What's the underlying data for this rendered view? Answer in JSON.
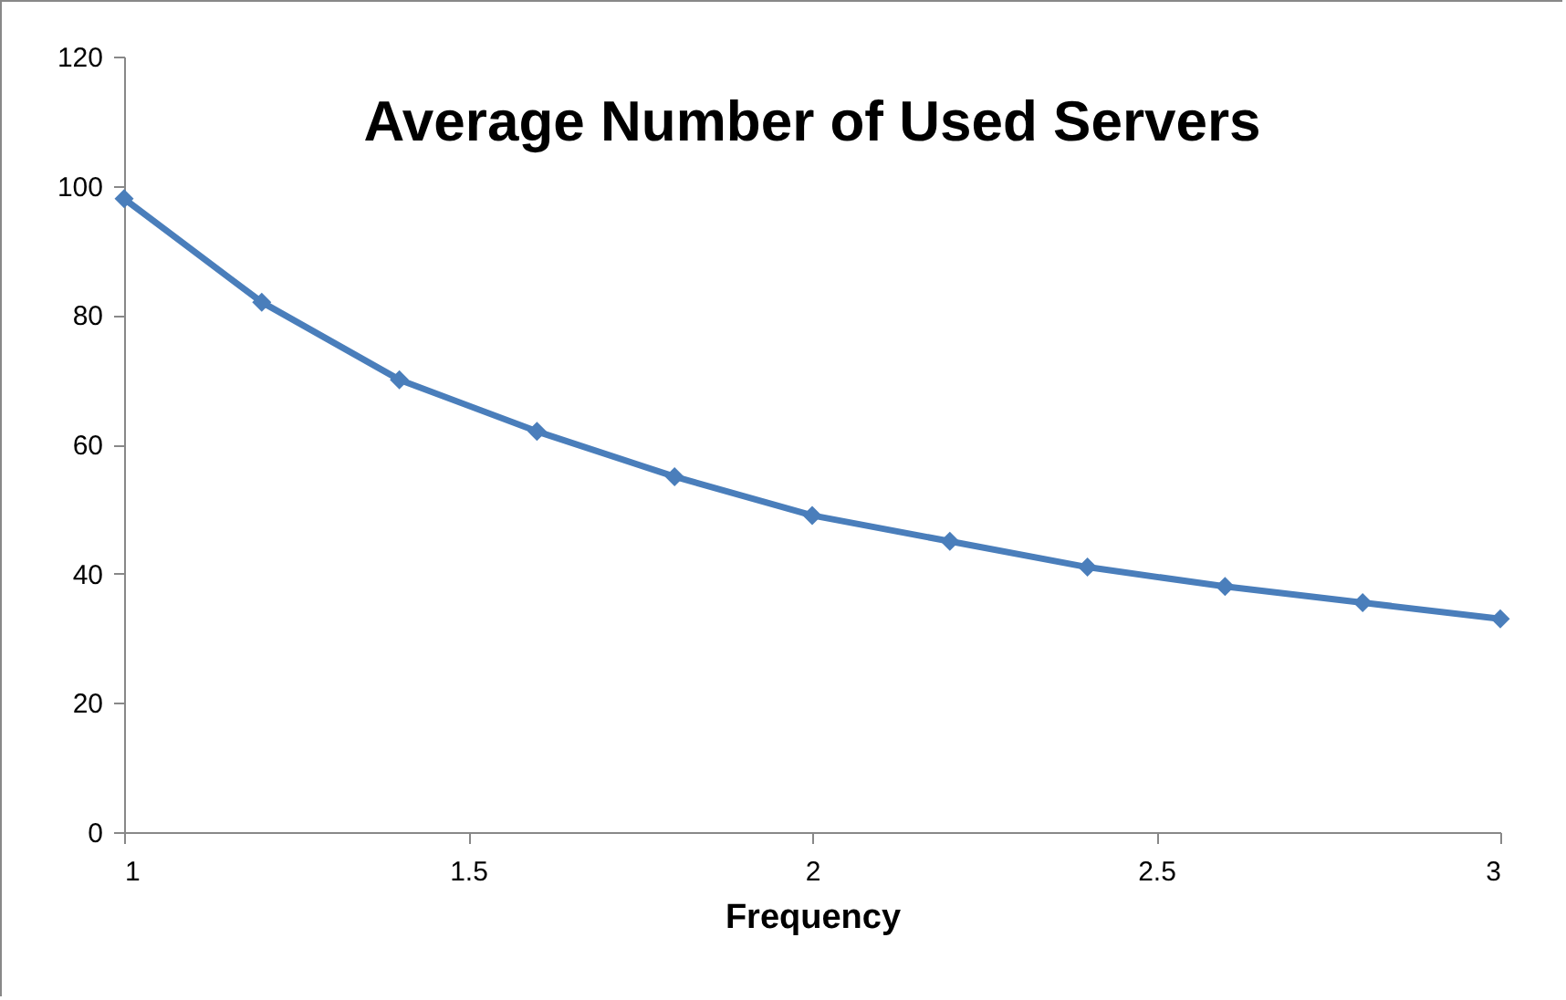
{
  "chart_data": {
    "type": "line",
    "title": "Average Number of Used Servers",
    "xlabel": "Frequency",
    "x": [
      1,
      1.2,
      1.4,
      1.6,
      1.8,
      2,
      2.2,
      2.4,
      2.6,
      2.8,
      3
    ],
    "series": [
      {
        "color": "#4a7ebb",
        "values": [
          98,
          82,
          70,
          62,
          55,
          49,
          45,
          41,
          38,
          35.5,
          33
        ]
      }
    ],
    "xlim": [
      1,
      3
    ],
    "xticks": [
      1,
      1.5,
      2,
      2.5,
      3
    ],
    "ylim": [
      0,
      120
    ],
    "yticks": [
      0,
      20,
      40,
      60,
      80,
      100,
      120
    ],
    "grid": false,
    "marker": "diamond",
    "line_style": "solid"
  }
}
